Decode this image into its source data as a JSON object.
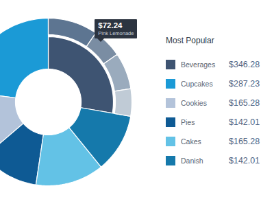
{
  "chart_data": {
    "type": "donut",
    "title": "Most Popular",
    "categories": [
      "Beverages",
      "Cupcakes",
      "Cookies",
      "Pies",
      "Cakes",
      "Danish"
    ],
    "values": [
      346.28,
      287.23,
      165.28,
      142.01,
      165.28,
      142.01
    ],
    "value_labels": [
      "$346.28",
      "$287.23",
      "$165.28",
      "$142.01",
      "$165.28",
      "$142.01"
    ],
    "colors": [
      "#3e5472",
      "#1b9ad6",
      "#b3c3da",
      "#0e5a94",
      "#63c2e6",
      "#1579ab"
    ],
    "legend": "right",
    "breakdown": {
      "category": "Beverages",
      "labels": [
        null,
        "Pink Lemonade",
        null,
        null
      ],
      "values": [
        120,
        72.24,
        88,
        66.04
      ],
      "value_labels": [
        null,
        "$72.24",
        null,
        null
      ],
      "colors": [
        "#5d7591",
        "#7a8da3",
        "#9aabbd",
        "#c0cbd6"
      ]
    }
  }
}
